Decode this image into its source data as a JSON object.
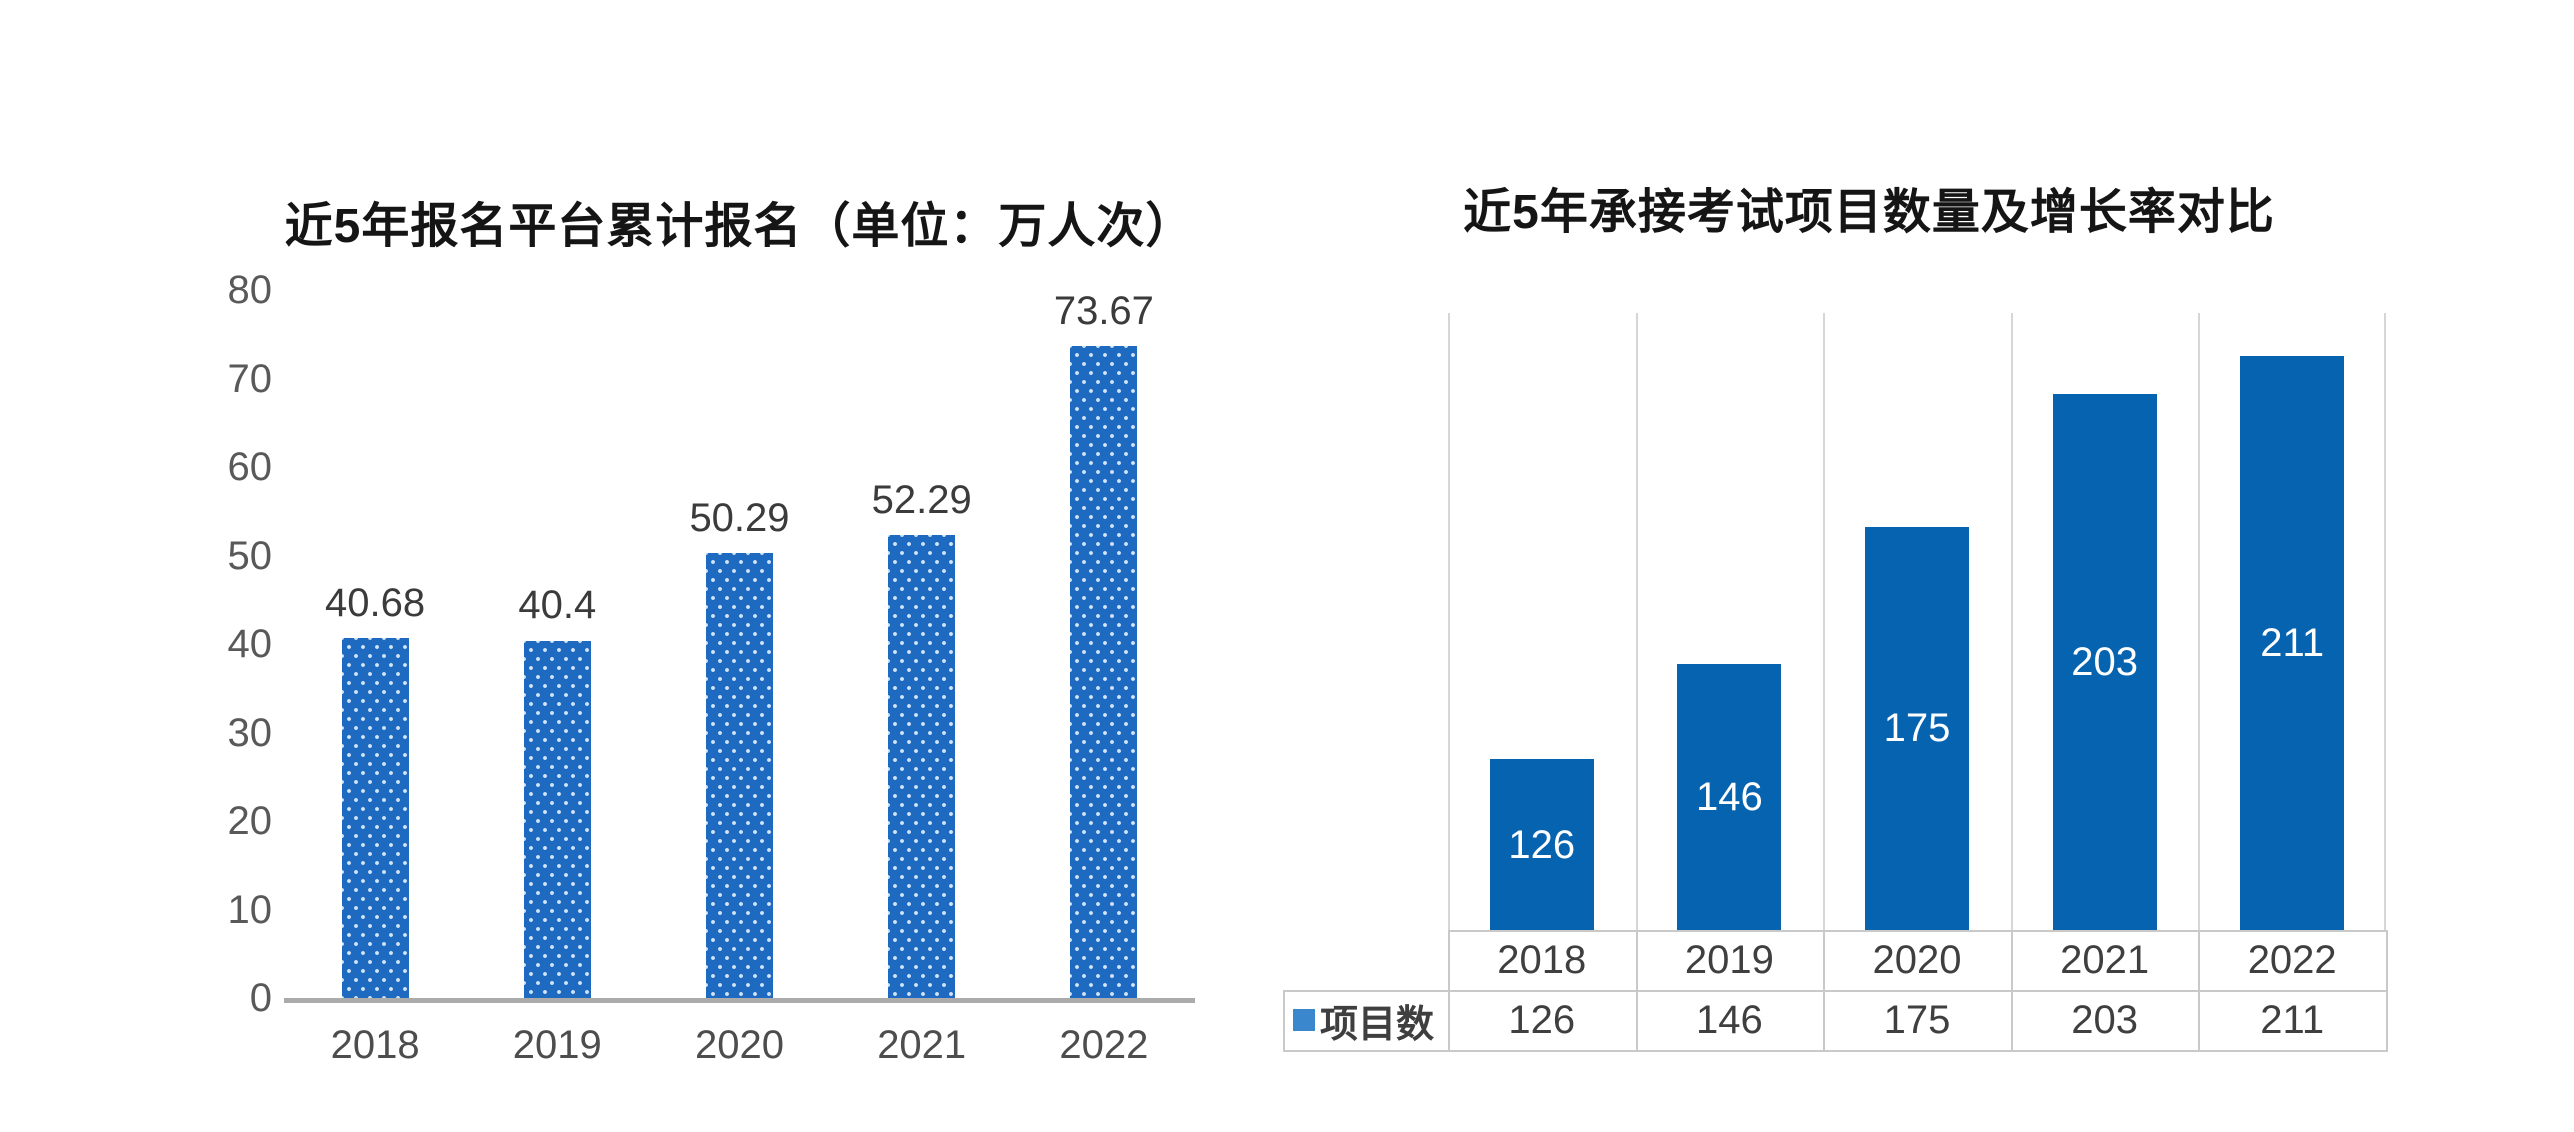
{
  "slide": {
    "background": "#FFFFFF"
  },
  "chart_data": [
    {
      "type": "bar",
      "title": "近5年报名平台累计报名（单位：万人次）",
      "categories": [
        "2018",
        "2019",
        "2020",
        "2021",
        "2022"
      ],
      "values": [
        40.68,
        40.4,
        50.29,
        52.29,
        73.67
      ],
      "xlabel": "",
      "ylabel": "",
      "ylim": [
        0,
        80
      ],
      "yticks": [
        0,
        10,
        20,
        30,
        40,
        50,
        60,
        70,
        80
      ],
      "grid": false,
      "legend_position": "none",
      "bar_color": "#1E6AC0",
      "bar_fill_pattern": "light-dot-lattice",
      "axis_line_color": "#ABABAB",
      "tick_label_color": "#595959",
      "data_label_position": "above-bar",
      "data_label_color": "#3B3B3B"
    },
    {
      "type": "bar",
      "title": "近5年承接考试项目数量及增长率对比",
      "categories": [
        "2018",
        "2019",
        "2020",
        "2021",
        "2022"
      ],
      "series": [
        {
          "name": "项目数",
          "values": [
            126,
            146,
            175,
            203,
            211
          ]
        }
      ],
      "xlabel": "",
      "ylabel": "",
      "ylim": [
        90,
        220
      ],
      "grid": "vertical-only",
      "gridline_color": "#D6D6D6",
      "bar_color": "#0663B0",
      "data_label_position": "inside-center",
      "data_label_color": "#FFFFFF",
      "legend_position": "table-left",
      "legend_marker_color": "#3A87CE",
      "data_table": {
        "show": true,
        "border_color": "#C9C9C9",
        "row_label": "项目数"
      }
    }
  ]
}
